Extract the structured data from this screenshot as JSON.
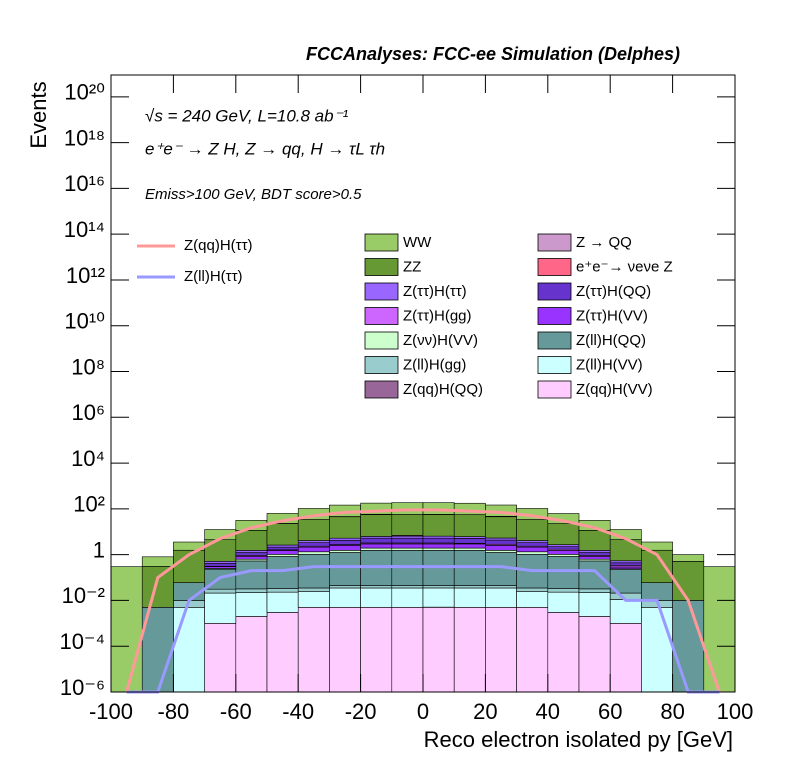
{
  "chart_data": {
    "type": "stacked_histogram",
    "title": "FCCAnalyses: FCC-ee Simulation (Delphes)",
    "annotations": [
      "√s = 240 GeV, L=10.8 ab⁻¹",
      "e⁺e⁻ → Z H, Z → qq, H → τL τh",
      "Emiss>100 GeV, BDT score>0.5"
    ],
    "x_label": "Reco electron isolated py [GeV]",
    "y_label": "Events",
    "log_y": true,
    "bins": [
      -100,
      -90,
      -80,
      -70,
      -60,
      -50,
      -40,
      -30,
      -20,
      -10,
      0,
      10,
      20,
      30,
      40,
      50,
      60,
      70,
      80,
      90,
      100
    ],
    "xlim": [
      -100,
      100
    ],
    "xticks": [
      -100,
      -80,
      -60,
      -40,
      -20,
      0,
      20,
      40,
      60,
      80,
      100
    ],
    "ylim": [
      1e-06,
      9e+20
    ],
    "yticks": [
      {
        "value": 1e-06,
        "label": "10⁻⁶"
      },
      {
        "value": 0.0001,
        "label": "10⁻⁴"
      },
      {
        "value": 0.01,
        "label": "10⁻²"
      },
      1,
      {
        "value": 100,
        "label": "10²"
      },
      {
        "value": 10000.0,
        "label": "10⁴"
      },
      {
        "value": 1000000.0,
        "label": "10⁶"
      },
      {
        "value": 100000000.0,
        "label": "10⁸"
      },
      {
        "value": 10000000000.0,
        "label": "10¹⁰"
      },
      {
        "value": 1000000000000.0,
        "label": "10¹²"
      },
      {
        "value": 100000000000000.0,
        "label": "10¹⁴"
      },
      {
        "value": 1e+16,
        "label": "10¹⁶"
      },
      {
        "value": 1e+18,
        "label": "10¹⁸"
      },
      {
        "value": 1e+20,
        "label": "10²⁰"
      }
    ],
    "series": [
      {
        "name": "WW",
        "color": "#99cc66",
        "values": [
          0.3,
          0.5,
          2,
          8,
          20,
          40,
          70,
          100,
          120,
          130,
          130,
          120,
          100,
          70,
          40,
          20,
          8,
          2,
          0.5,
          0.3
        ]
      },
      {
        "name": "Z → QQ",
        "color": "#cc99cc",
        "values": [
          0,
          0,
          0,
          0,
          0,
          0.5,
          0,
          1,
          2,
          0,
          1,
          0,
          2,
          0,
          0,
          0,
          0,
          0,
          0,
          0
        ]
      },
      {
        "name": "ZZ",
        "color": "#669933",
        "values": [
          0,
          0.3,
          1.5,
          4,
          10,
          20,
          30,
          40,
          50,
          50,
          50,
          50,
          40,
          30,
          20,
          10,
          4,
          1.5,
          0.5,
          0
        ]
      },
      {
        "name": "e⁺e⁻→ νeνe Z",
        "color": "#ff6688",
        "values": [
          0,
          0,
          0,
          0,
          0,
          0,
          0,
          0,
          0,
          0.5,
          0,
          0,
          0,
          0,
          0,
          0,
          0,
          0,
          0,
          0
        ]
      },
      {
        "name": "Z(ττ)H(ττ)",
        "color": "#9966ff",
        "values": [
          0,
          0,
          0,
          0.1,
          0.3,
          0.5,
          0.8,
          1,
          1,
          1.2,
          1.2,
          1,
          1,
          0.8,
          0.5,
          0.3,
          0.1,
          0,
          0,
          0
        ]
      },
      {
        "name": "Z(ττ)H(QQ)",
        "color": "#6633cc",
        "values": [
          0,
          0,
          0,
          0.1,
          0.3,
          0.5,
          1,
          1.5,
          2,
          2,
          2,
          2,
          1.5,
          1,
          0.5,
          0.3,
          0.1,
          0,
          0,
          0
        ]
      },
      {
        "name": "Z(ττ)H(gg)",
        "color": "#cc66ff",
        "values": [
          0,
          0,
          0,
          0.01,
          0.1,
          0.1,
          0.2,
          0.2,
          0.3,
          0.3,
          0.3,
          0.2,
          0.3,
          0.2,
          0.2,
          0.1,
          0.05,
          0,
          0,
          0
        ]
      },
      {
        "name": "Z(ττ)H(VV)",
        "color": "#9933ff",
        "values": [
          0,
          0,
          0,
          0.05,
          0.2,
          0.5,
          0.8,
          1,
          1,
          1,
          1,
          1,
          1,
          0.8,
          0.5,
          0.2,
          0.05,
          0,
          0,
          0
        ]
      },
      {
        "name": "Z(νν)H(VV)",
        "color": "#ccffcc",
        "values": [
          0,
          0,
          0,
          0.02,
          0.1,
          0.2,
          0.3,
          0.3,
          0.4,
          0.4,
          0.4,
          0.4,
          0.3,
          0.3,
          0.2,
          0.1,
          0.02,
          0,
          0,
          0
        ]
      },
      {
        "name": "Z(ll)H(QQ)",
        "color": "#669999",
        "values": [
          0,
          0.005,
          0.05,
          0.2,
          0.5,
          0.8,
          1,
          1.2,
          1.5,
          1.5,
          1.5,
          1.5,
          1.2,
          1,
          0.8,
          0.5,
          0.2,
          0.05,
          0.01,
          0
        ]
      },
      {
        "name": "Z(ll)H(gg)",
        "color": "#99cccc",
        "values": [
          0,
          0,
          0.005,
          0.01,
          0.01,
          0.01,
          0.01,
          0.01,
          0.01,
          0.01,
          0.01,
          0.01,
          0.01,
          0.01,
          0.01,
          0.01,
          0.01,
          0.005,
          0,
          0
        ]
      },
      {
        "name": "Z(ll)H(VV)",
        "color": "#ccffff",
        "values": [
          0,
          0,
          0.005,
          0.02,
          0.02,
          0.02,
          0.02,
          0.03,
          0.03,
          0.03,
          0.03,
          0.03,
          0.03,
          0.02,
          0.02,
          0.02,
          0.01,
          0.005,
          0,
          0
        ]
      },
      {
        "name": "Z(qq)H(QQ)",
        "color": "#996699",
        "values": [
          0,
          0,
          0,
          0,
          0,
          0,
          0,
          0,
          0,
          0,
          0.0001,
          0,
          0,
          0,
          0,
          0,
          0,
          0,
          0,
          0
        ]
      },
      {
        "name": "Z(qq)H(VV)",
        "color": "#ffccff",
        "values": [
          0,
          0,
          0,
          0.001,
          0.002,
          0.003,
          0.005,
          0.005,
          0.005,
          0.005,
          0.005,
          0.005,
          0.005,
          0.005,
          0.003,
          0.002,
          0.001,
          0,
          0,
          0
        ]
      }
    ],
    "lines": [
      {
        "name": "Z(qq)H(ττ)",
        "color": "#ff9999",
        "values": [
          0,
          0.1,
          1,
          5,
          15,
          30,
          50,
          70,
          80,
          90,
          90,
          80,
          70,
          50,
          30,
          15,
          5,
          1,
          0.01,
          0
        ]
      },
      {
        "name": "Z(ll)H(ττ)",
        "color": "#9999ff",
        "values": [
          0,
          0,
          0.01,
          0.1,
          0.2,
          0.2,
          0.3,
          0.3,
          0.3,
          0.3,
          0.3,
          0.3,
          0.3,
          0.2,
          0.2,
          0.2,
          0.01,
          0.01,
          0,
          0
        ]
      }
    ]
  }
}
